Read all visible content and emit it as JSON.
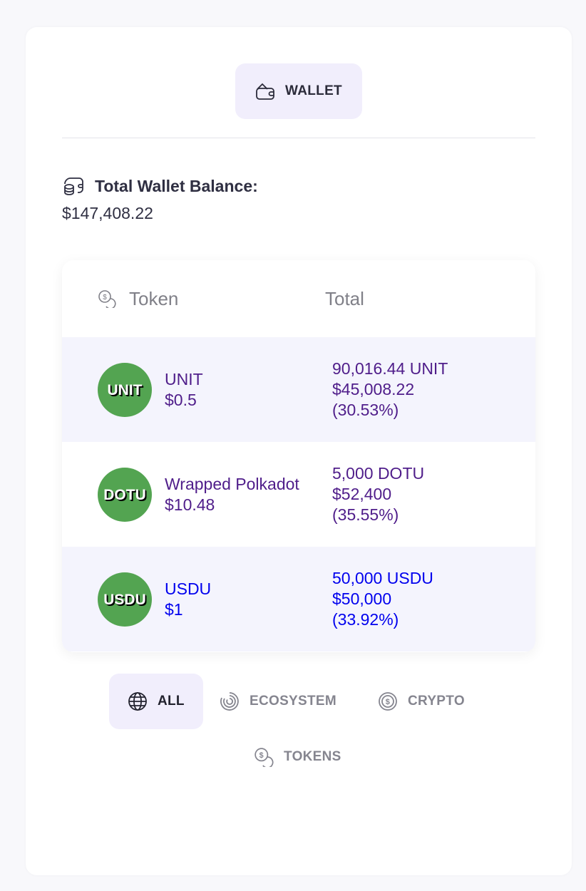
{
  "header": {
    "wallet_label": "WALLET"
  },
  "balance": {
    "title": "Total Wallet Balance:",
    "value": "$147,408.22"
  },
  "table": {
    "columns": [
      "Token",
      "Total"
    ],
    "rows": [
      {
        "symbol": "UNIT",
        "name": "UNIT",
        "price": "$0.5",
        "amount": "90,016.44 UNIT",
        "value": "$45,008.22",
        "share": "(30.53%)",
        "color": "#4f1d8a"
      },
      {
        "symbol": "DOTU",
        "name": "Wrapped Polkadot",
        "price": "$10.48",
        "amount": "5,000 DOTU",
        "value": "$52,400",
        "share": "(35.55%)",
        "color": "#4f1d8a"
      },
      {
        "symbol": "USDU",
        "name": "USDU",
        "price": "$1",
        "amount": "50,000 USDU",
        "value": "$50,000",
        "share": "(33.92%)",
        "color": "#0000ee"
      }
    ]
  },
  "filters": [
    {
      "label": "ALL",
      "icon": "globe-icon",
      "active": true
    },
    {
      "label": "ECOSYSTEM",
      "icon": "ecosystem-icon"
    },
    {
      "label": "CRYPTO",
      "icon": "dollar-circle-icon"
    },
    {
      "label": "TOKENS",
      "icon": "coins-icon"
    }
  ],
  "colors": {
    "coin_bg": "#53a451",
    "accent_bg": "#f1eefc",
    "purple": "#4f1d8a",
    "blue": "#0000ee"
  }
}
